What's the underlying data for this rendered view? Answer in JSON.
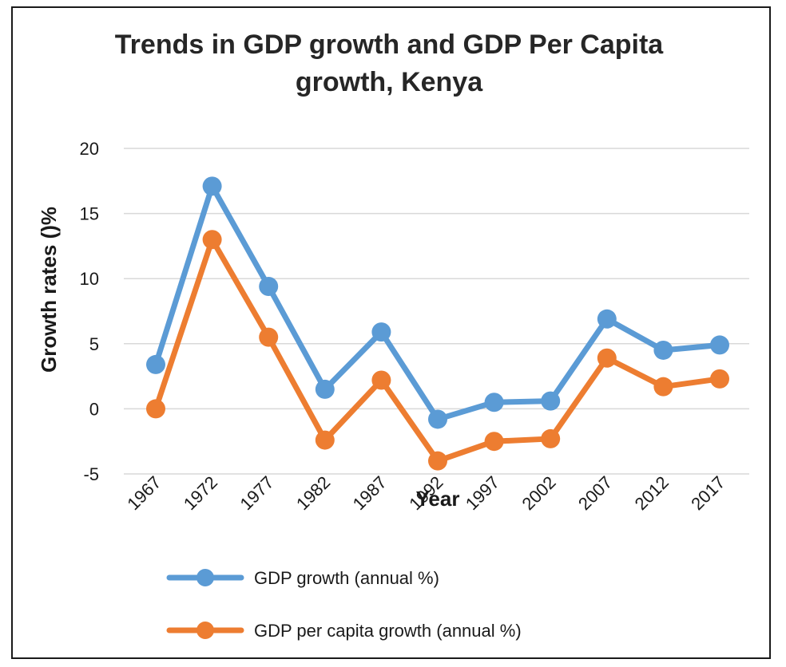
{
  "chart_data": {
    "type": "line",
    "title_lines": [
      "Trends in GDP growth and GDP Per Capita",
      "growth, Kenya"
    ],
    "xlabel": "Year",
    "ylabel": "Growth rates ()%",
    "categories": [
      "1967",
      "1972",
      "1977",
      "1982",
      "1987",
      "1992",
      "1997",
      "2002",
      "2007",
      "2012",
      "2017"
    ],
    "ylim": [
      -5,
      20
    ],
    "yticks": [
      -5,
      0,
      5,
      10,
      15,
      20
    ],
    "grid": true,
    "legend_position": "bottom",
    "series": [
      {
        "name": "GDP growth (annual %)",
        "color": "#5b9bd5",
        "values": [
          3.4,
          17.1,
          9.4,
          1.5,
          5.9,
          -0.8,
          0.5,
          0.6,
          6.9,
          4.5,
          4.9
        ]
      },
      {
        "name": "GDP per capita growth (annual %)",
        "color": "#ed7d31",
        "values": [
          0.0,
          13.0,
          5.5,
          -2.4,
          2.2,
          -4.0,
          -2.5,
          -2.3,
          3.9,
          1.7,
          2.3
        ]
      }
    ]
  }
}
